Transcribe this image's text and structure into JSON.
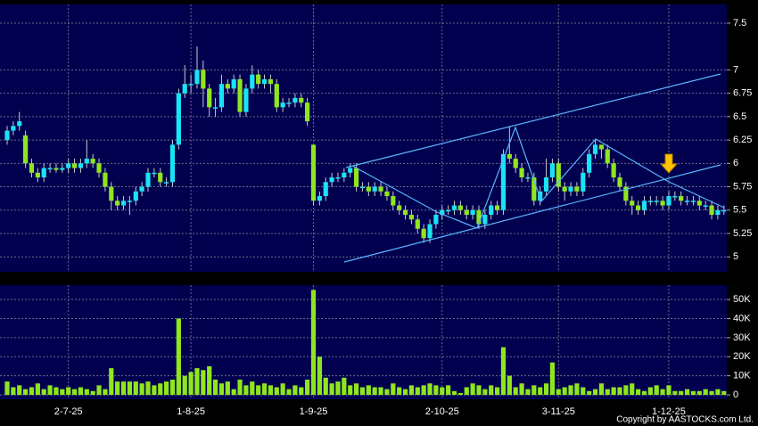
{
  "chart_data": [
    {
      "type": "candlestick",
      "up_color": "#19e3f5",
      "down_color": "#8fe61e",
      "grid": true,
      "ylim": [
        4.84,
        7.7
      ],
      "yticks": [
        5,
        5.25,
        5.5,
        5.75,
        6,
        6.25,
        6.5,
        6.75,
        7,
        7.5
      ],
      "open": [
        6.25,
        6.35,
        6.4,
        6.3,
        6.0,
        5.9,
        5.85,
        5.95,
        5.95,
        5.93,
        5.95,
        6.0,
        5.95,
        6.0,
        6.05,
        6.0,
        5.9,
        5.75,
        5.6,
        5.55,
        5.6,
        5.6,
        5.7,
        5.75,
        5.9,
        5.9,
        5.8,
        5.8,
        6.2,
        6.75,
        6.85,
        6.85,
        7.0,
        6.8,
        6.6,
        6.6,
        6.85,
        6.8,
        6.9,
        6.55,
        6.8,
        6.95,
        6.85,
        6.9,
        6.85,
        6.6,
        6.65,
        6.65,
        6.7,
        6.65,
        6.2,
        5.6,
        5.65,
        5.8,
        5.85,
        5.85,
        5.9,
        5.95,
        5.75,
        5.75,
        5.7,
        5.75,
        5.7,
        5.65,
        5.55,
        5.5,
        5.45,
        5.4,
        5.3,
        5.2,
        5.35,
        5.45,
        5.5,
        5.5,
        5.55,
        5.5,
        5.45,
        5.5,
        5.35,
        5.45,
        5.55,
        5.5,
        6.1,
        6.05,
        5.95,
        5.85,
        5.85,
        5.6,
        5.7,
        5.85,
        6.0,
        5.75,
        5.7,
        5.75,
        5.7,
        5.9,
        6.1,
        6.2,
        6.15,
        6.0,
        5.85,
        5.75,
        5.6,
        5.55,
        5.5,
        5.6,
        5.6,
        5.6,
        5.55,
        5.65,
        5.65,
        5.6,
        5.6,
        5.6,
        5.55,
        5.55,
        5.45,
        5.5
      ],
      "high": [
        6.4,
        6.45,
        6.55,
        6.35,
        6.05,
        5.95,
        6.0,
        6.0,
        6.0,
        6.0,
        6.05,
        6.05,
        6.05,
        6.25,
        6.1,
        6.05,
        5.95,
        5.8,
        5.65,
        5.65,
        5.65,
        5.75,
        5.8,
        5.95,
        5.95,
        5.95,
        5.85,
        6.25,
        6.8,
        7.05,
        6.95,
        7.25,
        7.1,
        6.85,
        6.7,
        6.95,
        6.9,
        6.95,
        6.95,
        6.85,
        7.05,
        7.0,
        6.95,
        6.95,
        6.9,
        6.7,
        6.7,
        6.75,
        6.75,
        6.7,
        6.2,
        5.7,
        5.85,
        5.9,
        5.9,
        5.95,
        6.0,
        6.0,
        5.8,
        5.8,
        5.8,
        5.8,
        5.75,
        5.7,
        5.6,
        5.55,
        5.5,
        5.45,
        5.35,
        5.4,
        5.5,
        5.55,
        5.55,
        5.6,
        5.6,
        5.55,
        5.55,
        5.55,
        5.5,
        5.6,
        5.6,
        6.15,
        6.4,
        6.1,
        6.0,
        5.9,
        5.9,
        5.75,
        6.05,
        6.05,
        6.05,
        5.8,
        5.8,
        5.8,
        5.95,
        6.15,
        6.25,
        6.2,
        6.2,
        6.05,
        5.9,
        5.8,
        5.65,
        5.6,
        5.65,
        5.65,
        5.65,
        5.65,
        5.7,
        5.7,
        5.7,
        5.65,
        5.65,
        5.65,
        5.6,
        5.6,
        5.55,
        5.55
      ],
      "low": [
        6.2,
        6.3,
        6.35,
        5.95,
        5.85,
        5.8,
        5.8,
        5.9,
        5.9,
        5.9,
        5.9,
        5.9,
        5.9,
        5.95,
        5.95,
        5.85,
        5.7,
        5.5,
        5.5,
        5.5,
        5.45,
        5.55,
        5.65,
        5.7,
        5.85,
        5.75,
        5.75,
        5.75,
        6.15,
        6.7,
        6.75,
        6.8,
        6.6,
        6.5,
        6.5,
        6.55,
        6.75,
        6.75,
        6.5,
        6.5,
        6.75,
        6.8,
        6.8,
        6.75,
        6.55,
        6.55,
        6.6,
        6.6,
        6.6,
        6.4,
        5.55,
        5.55,
        5.6,
        5.75,
        5.8,
        5.8,
        5.85,
        5.7,
        5.7,
        5.65,
        5.65,
        5.65,
        5.6,
        5.5,
        5.45,
        5.4,
        5.35,
        5.25,
        5.15,
        5.15,
        5.3,
        5.4,
        5.45,
        5.45,
        5.45,
        5.4,
        5.4,
        5.3,
        5.3,
        5.4,
        5.45,
        5.45,
        6.0,
        5.9,
        5.8,
        5.8,
        5.55,
        5.55,
        5.65,
        5.8,
        5.7,
        5.6,
        5.65,
        5.65,
        5.65,
        5.85,
        6.05,
        6.05,
        5.95,
        5.8,
        5.7,
        5.55,
        5.45,
        5.45,
        5.45,
        5.55,
        5.55,
        5.5,
        5.5,
        5.6,
        5.55,
        5.55,
        5.55,
        5.5,
        5.5,
        5.4,
        5.4,
        5.45
      ],
      "close": [
        6.35,
        6.4,
        6.45,
        6.0,
        5.9,
        5.85,
        5.95,
        5.95,
        5.93,
        5.95,
        6.0,
        5.95,
        6.0,
        6.05,
        6.0,
        5.9,
        5.75,
        5.6,
        5.55,
        5.6,
        5.6,
        5.7,
        5.75,
        5.9,
        5.9,
        5.8,
        5.8,
        6.2,
        6.75,
        6.85,
        6.85,
        7.0,
        6.8,
        6.6,
        6.6,
        6.85,
        6.8,
        6.9,
        6.55,
        6.8,
        6.95,
        6.85,
        6.9,
        6.85,
        6.6,
        6.65,
        6.65,
        6.7,
        6.65,
        6.45,
        5.6,
        5.65,
        5.8,
        5.85,
        5.85,
        5.9,
        5.95,
        5.75,
        5.75,
        5.7,
        5.75,
        5.7,
        5.65,
        5.55,
        5.5,
        5.45,
        5.4,
        5.3,
        5.2,
        5.35,
        5.45,
        5.5,
        5.5,
        5.55,
        5.5,
        5.45,
        5.5,
        5.35,
        5.45,
        5.55,
        5.5,
        6.1,
        6.05,
        5.95,
        5.85,
        5.85,
        5.6,
        5.7,
        5.85,
        6.0,
        5.75,
        5.7,
        5.75,
        5.7,
        5.9,
        6.1,
        6.2,
        6.15,
        6.0,
        5.85,
        5.75,
        5.6,
        5.55,
        5.5,
        5.6,
        5.6,
        5.6,
        5.55,
        5.65,
        5.65,
        5.6,
        5.6,
        5.6,
        5.55,
        5.55,
        5.45,
        5.5,
        5.5
      ]
    },
    {
      "type": "bar",
      "color": "#8fe61e",
      "grid": true,
      "ylim": [
        -2.3,
        57.5
      ],
      "yticks": [
        0,
        {
          "value": 10,
          "label": "10K"
        },
        {
          "value": 20,
          "label": "20K"
        },
        {
          "value": 30,
          "label": "30K"
        },
        {
          "value": 40,
          "label": "40K"
        },
        {
          "value": 50,
          "label": "50K"
        }
      ],
      "categories": [
        null,
        null,
        null,
        null,
        null,
        null,
        null,
        null,
        null,
        null,
        "2-7-25",
        null,
        null,
        null,
        null,
        null,
        null,
        null,
        null,
        null,
        null,
        null,
        null,
        null,
        null,
        null,
        null,
        null,
        null,
        null,
        "1-8-25",
        null,
        null,
        null,
        null,
        null,
        null,
        null,
        null,
        null,
        null,
        null,
        null,
        null,
        null,
        null,
        null,
        null,
        null,
        null,
        "1-9-25",
        null,
        null,
        null,
        null,
        null,
        null,
        null,
        null,
        null,
        null,
        null,
        null,
        null,
        null,
        null,
        null,
        null,
        null,
        null,
        null,
        "2-10-25",
        null,
        null,
        null,
        null,
        null,
        null,
        null,
        null,
        null,
        null,
        null,
        null,
        null,
        null,
        null,
        null,
        null,
        null,
        "3-11-25",
        null,
        null,
        null,
        null,
        null,
        null,
        null,
        null,
        null,
        null,
        null,
        null,
        null,
        null,
        null,
        null,
        null,
        "1-12-25",
        null,
        null,
        null,
        null,
        null,
        null,
        null,
        null,
        null
      ],
      "values": [
        7,
        4,
        5,
        3,
        4,
        6,
        3,
        5,
        4,
        3,
        4,
        3,
        4,
        3,
        2,
        5,
        3,
        14,
        7,
        7,
        7,
        7,
        6,
        7,
        5,
        6,
        7,
        8,
        40,
        10,
        12,
        14,
        13,
        15,
        8,
        6,
        7,
        3,
        8,
        5,
        7,
        5,
        6,
        5,
        4,
        6,
        3,
        5,
        4,
        8,
        55,
        20,
        9,
        6,
        7,
        9,
        5,
        6,
        4,
        5,
        4,
        4,
        3,
        6,
        4,
        3,
        5,
        4,
        5,
        6,
        5,
        4,
        5,
        2,
        1,
        4,
        6,
        5,
        3,
        5,
        4,
        25,
        10,
        4,
        6,
        3,
        5,
        4,
        6,
        17,
        3,
        4,
        5,
        6,
        4,
        2,
        3,
        6,
        3,
        4,
        4,
        5,
        6,
        3,
        2,
        4,
        5,
        3,
        5,
        2,
        2,
        3,
        2,
        2,
        3,
        2,
        3,
        2
      ]
    }
  ],
  "copyright": "Copyright by AASTOCKS.com Ltd."
}
